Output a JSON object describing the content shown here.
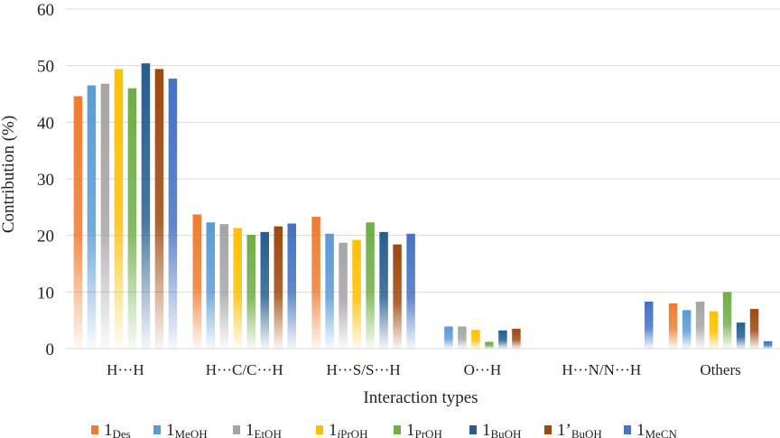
{
  "chart_data": {
    "type": "bar",
    "title": "",
    "xlabel": "Interaction types",
    "ylabel": "Contribution (%)",
    "ylim": [
      0,
      60
    ],
    "yticks": [
      0,
      10,
      20,
      30,
      40,
      50,
      60
    ],
    "grid": true,
    "legend_position": "bottom",
    "categories": [
      "H···H",
      "H···C/C···H",
      "H···S/S···H",
      "O···H",
      "H···N/N···H",
      "Others"
    ],
    "series": [
      {
        "name": "1Des",
        "prefix": "1",
        "sub": "Des",
        "color": "#ED7D31",
        "values": [
          44.6,
          23.7,
          23.3,
          0,
          0,
          8.0
        ]
      },
      {
        "name": "1MeOH",
        "prefix": "1",
        "sub": "MeOH",
        "color": "#5B9BD5",
        "values": [
          46.5,
          22.3,
          20.3,
          3.9,
          0,
          6.8
        ]
      },
      {
        "name": "1EtOH",
        "prefix": "1",
        "sub": "EtOH",
        "color": "#A5A5A5",
        "values": [
          46.8,
          22.0,
          18.7,
          3.9,
          0,
          8.3
        ]
      },
      {
        "name": "1iPrOH",
        "prefix": "1",
        "sub": "iPrOH",
        "color": "#FFC000",
        "values": [
          49.4,
          21.3,
          19.2,
          3.3,
          0,
          6.6
        ]
      },
      {
        "name": "1PrOH",
        "prefix": "1",
        "sub": "PrOH",
        "color": "#70AD47",
        "values": [
          46.0,
          20.1,
          22.3,
          1.2,
          0,
          10.0
        ]
      },
      {
        "name": "1BuOH",
        "prefix": "1",
        "sub": "BuOH",
        "color": "#255E91",
        "values": [
          50.4,
          20.6,
          20.6,
          3.2,
          0,
          4.6
        ]
      },
      {
        "name": "1'BuOH",
        "prefix": "1’",
        "sub": "BuOH",
        "color": "#9E480E",
        "values": [
          49.4,
          21.6,
          18.4,
          3.5,
          0,
          7.0
        ]
      },
      {
        "name": "1MeCN",
        "prefix": "1",
        "sub": "MeCN",
        "color": "#4472C4",
        "values": [
          47.7,
          22.1,
          20.3,
          0,
          8.3,
          1.3
        ]
      }
    ]
  }
}
